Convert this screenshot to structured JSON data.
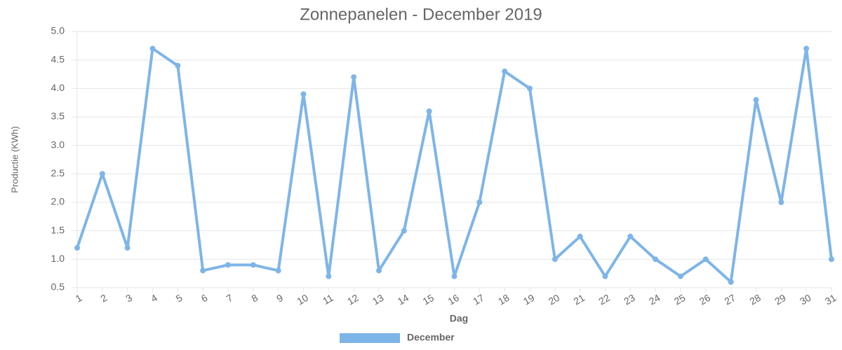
{
  "chart_data": {
    "type": "line",
    "title": "Zonnepanelen - December 2019",
    "x_label": "Dag",
    "y_label": "Productie (KWh)",
    "categories": [
      "1",
      "2",
      "3",
      "4",
      "5",
      "6",
      "7",
      "8",
      "9",
      "10",
      "11",
      "12",
      "13",
      "14",
      "15",
      "16",
      "17",
      "18",
      "19",
      "20",
      "21",
      "22",
      "23",
      "24",
      "25",
      "26",
      "27",
      "28",
      "29",
      "30",
      "31"
    ],
    "series": [
      {
        "name": "December",
        "color": "#7eb5e8",
        "values": [
          1.2,
          2.5,
          1.2,
          4.7,
          4.4,
          0.8,
          0.9,
          0.9,
          0.8,
          3.9,
          0.7,
          4.2,
          0.8,
          1.5,
          3.6,
          0.7,
          2.0,
          4.3,
          4.0,
          1.0,
          1.4,
          0.7,
          1.4,
          1.0,
          0.7,
          1.0,
          0.6,
          3.8,
          2.0,
          4.7,
          1.0
        ]
      }
    ],
    "ylim": [
      0.5,
      5
    ],
    "yticks": [
      0.5,
      {
        "value": 1,
        "label": "1.0"
      },
      1.5,
      {
        "value": 2,
        "label": "2.0"
      },
      2.5,
      {
        "value": 3,
        "label": "3.0"
      },
      3.5,
      {
        "value": 4,
        "label": "4.0"
      },
      4.5,
      {
        "value": 5,
        "label": "5.0"
      }
    ],
    "grid": true,
    "legend": "bottom"
  }
}
